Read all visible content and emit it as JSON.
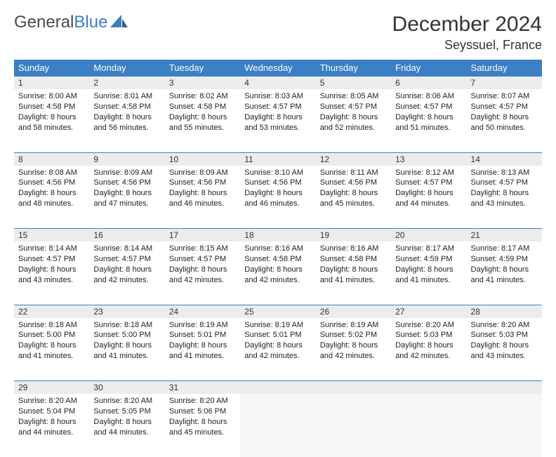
{
  "logo": {
    "word1": "General",
    "word2": "Blue"
  },
  "title": "December 2024",
  "location": "Seyssuel, France",
  "colors": {
    "header_bg": "#3b7fc4",
    "header_fg": "#ffffff",
    "daynum_bg": "#ececec",
    "divider": "#3b7fc4",
    "body_bg": "#ffffff",
    "empty_bg": "#f6f6f6",
    "text": "#222222"
  },
  "fonts": {
    "title_size": 30,
    "location_size": 18,
    "header_size": 13,
    "daynum_size": 12,
    "body_size": 11
  },
  "weekdays": [
    "Sunday",
    "Monday",
    "Tuesday",
    "Wednesday",
    "Thursday",
    "Friday",
    "Saturday"
  ],
  "weeks": [
    {
      "nums": [
        "1",
        "2",
        "3",
        "4",
        "5",
        "6",
        "7"
      ],
      "cells": [
        {
          "sunrise": "Sunrise: 8:00 AM",
          "sunset": "Sunset: 4:58 PM",
          "day1": "Daylight: 8 hours",
          "day2": "and 58 minutes."
        },
        {
          "sunrise": "Sunrise: 8:01 AM",
          "sunset": "Sunset: 4:58 PM",
          "day1": "Daylight: 8 hours",
          "day2": "and 56 minutes."
        },
        {
          "sunrise": "Sunrise: 8:02 AM",
          "sunset": "Sunset: 4:58 PM",
          "day1": "Daylight: 8 hours",
          "day2": "and 55 minutes."
        },
        {
          "sunrise": "Sunrise: 8:03 AM",
          "sunset": "Sunset: 4:57 PM",
          "day1": "Daylight: 8 hours",
          "day2": "and 53 minutes."
        },
        {
          "sunrise": "Sunrise: 8:05 AM",
          "sunset": "Sunset: 4:57 PM",
          "day1": "Daylight: 8 hours",
          "day2": "and 52 minutes."
        },
        {
          "sunrise": "Sunrise: 8:06 AM",
          "sunset": "Sunset: 4:57 PM",
          "day1": "Daylight: 8 hours",
          "day2": "and 51 minutes."
        },
        {
          "sunrise": "Sunrise: 8:07 AM",
          "sunset": "Sunset: 4:57 PM",
          "day1": "Daylight: 8 hours",
          "day2": "and 50 minutes."
        }
      ]
    },
    {
      "nums": [
        "8",
        "9",
        "10",
        "11",
        "12",
        "13",
        "14"
      ],
      "cells": [
        {
          "sunrise": "Sunrise: 8:08 AM",
          "sunset": "Sunset: 4:56 PM",
          "day1": "Daylight: 8 hours",
          "day2": "and 48 minutes."
        },
        {
          "sunrise": "Sunrise: 8:09 AM",
          "sunset": "Sunset: 4:56 PM",
          "day1": "Daylight: 8 hours",
          "day2": "and 47 minutes."
        },
        {
          "sunrise": "Sunrise: 8:09 AM",
          "sunset": "Sunset: 4:56 PM",
          "day1": "Daylight: 8 hours",
          "day2": "and 46 minutes."
        },
        {
          "sunrise": "Sunrise: 8:10 AM",
          "sunset": "Sunset: 4:56 PM",
          "day1": "Daylight: 8 hours",
          "day2": "and 46 minutes."
        },
        {
          "sunrise": "Sunrise: 8:11 AM",
          "sunset": "Sunset: 4:56 PM",
          "day1": "Daylight: 8 hours",
          "day2": "and 45 minutes."
        },
        {
          "sunrise": "Sunrise: 8:12 AM",
          "sunset": "Sunset: 4:57 PM",
          "day1": "Daylight: 8 hours",
          "day2": "and 44 minutes."
        },
        {
          "sunrise": "Sunrise: 8:13 AM",
          "sunset": "Sunset: 4:57 PM",
          "day1": "Daylight: 8 hours",
          "day2": "and 43 minutes."
        }
      ]
    },
    {
      "nums": [
        "15",
        "16",
        "17",
        "18",
        "19",
        "20",
        "21"
      ],
      "cells": [
        {
          "sunrise": "Sunrise: 8:14 AM",
          "sunset": "Sunset: 4:57 PM",
          "day1": "Daylight: 8 hours",
          "day2": "and 43 minutes."
        },
        {
          "sunrise": "Sunrise: 8:14 AM",
          "sunset": "Sunset: 4:57 PM",
          "day1": "Daylight: 8 hours",
          "day2": "and 42 minutes."
        },
        {
          "sunrise": "Sunrise: 8:15 AM",
          "sunset": "Sunset: 4:57 PM",
          "day1": "Daylight: 8 hours",
          "day2": "and 42 minutes."
        },
        {
          "sunrise": "Sunrise: 8:16 AM",
          "sunset": "Sunset: 4:58 PM",
          "day1": "Daylight: 8 hours",
          "day2": "and 42 minutes."
        },
        {
          "sunrise": "Sunrise: 8:16 AM",
          "sunset": "Sunset: 4:58 PM",
          "day1": "Daylight: 8 hours",
          "day2": "and 41 minutes."
        },
        {
          "sunrise": "Sunrise: 8:17 AM",
          "sunset": "Sunset: 4:59 PM",
          "day1": "Daylight: 8 hours",
          "day2": "and 41 minutes."
        },
        {
          "sunrise": "Sunrise: 8:17 AM",
          "sunset": "Sunset: 4:59 PM",
          "day1": "Daylight: 8 hours",
          "day2": "and 41 minutes."
        }
      ]
    },
    {
      "nums": [
        "22",
        "23",
        "24",
        "25",
        "26",
        "27",
        "28"
      ],
      "cells": [
        {
          "sunrise": "Sunrise: 8:18 AM",
          "sunset": "Sunset: 5:00 PM",
          "day1": "Daylight: 8 hours",
          "day2": "and 41 minutes."
        },
        {
          "sunrise": "Sunrise: 8:18 AM",
          "sunset": "Sunset: 5:00 PM",
          "day1": "Daylight: 8 hours",
          "day2": "and 41 minutes."
        },
        {
          "sunrise": "Sunrise: 8:19 AM",
          "sunset": "Sunset: 5:01 PM",
          "day1": "Daylight: 8 hours",
          "day2": "and 41 minutes."
        },
        {
          "sunrise": "Sunrise: 8:19 AM",
          "sunset": "Sunset: 5:01 PM",
          "day1": "Daylight: 8 hours",
          "day2": "and 42 minutes."
        },
        {
          "sunrise": "Sunrise: 8:19 AM",
          "sunset": "Sunset: 5:02 PM",
          "day1": "Daylight: 8 hours",
          "day2": "and 42 minutes."
        },
        {
          "sunrise": "Sunrise: 8:20 AM",
          "sunset": "Sunset: 5:03 PM",
          "day1": "Daylight: 8 hours",
          "day2": "and 42 minutes."
        },
        {
          "sunrise": "Sunrise: 8:20 AM",
          "sunset": "Sunset: 5:03 PM",
          "day1": "Daylight: 8 hours",
          "day2": "and 43 minutes."
        }
      ]
    },
    {
      "nums": [
        "29",
        "30",
        "31",
        "",
        "",
        "",
        ""
      ],
      "cells": [
        {
          "sunrise": "Sunrise: 8:20 AM",
          "sunset": "Sunset: 5:04 PM",
          "day1": "Daylight: 8 hours",
          "day2": "and 44 minutes."
        },
        {
          "sunrise": "Sunrise: 8:20 AM",
          "sunset": "Sunset: 5:05 PM",
          "day1": "Daylight: 8 hours",
          "day2": "and 44 minutes."
        },
        {
          "sunrise": "Sunrise: 8:20 AM",
          "sunset": "Sunset: 5:06 PM",
          "day1": "Daylight: 8 hours",
          "day2": "and 45 minutes."
        },
        null,
        null,
        null,
        null
      ]
    }
  ]
}
